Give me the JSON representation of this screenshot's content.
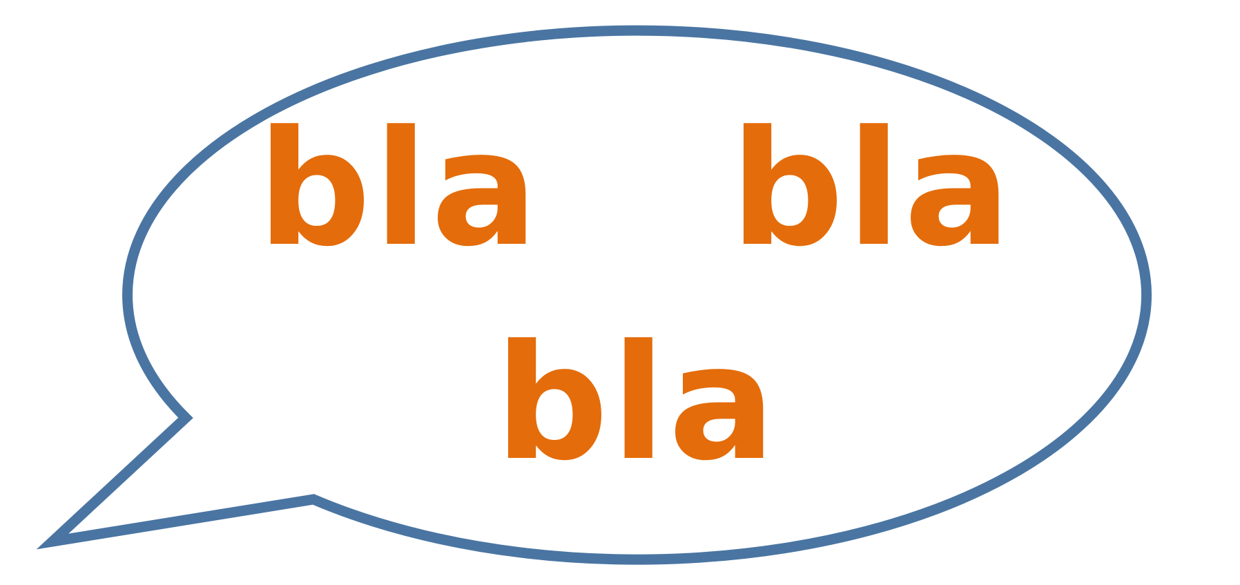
{
  "bubble": {
    "words": [
      "bla",
      "bla",
      "bla"
    ]
  },
  "colors": {
    "outline": "#4a75a2",
    "text": "#e46c0a",
    "background": "#ffffff"
  },
  "icons": {
    "shape": "speech-bubble-icon"
  }
}
